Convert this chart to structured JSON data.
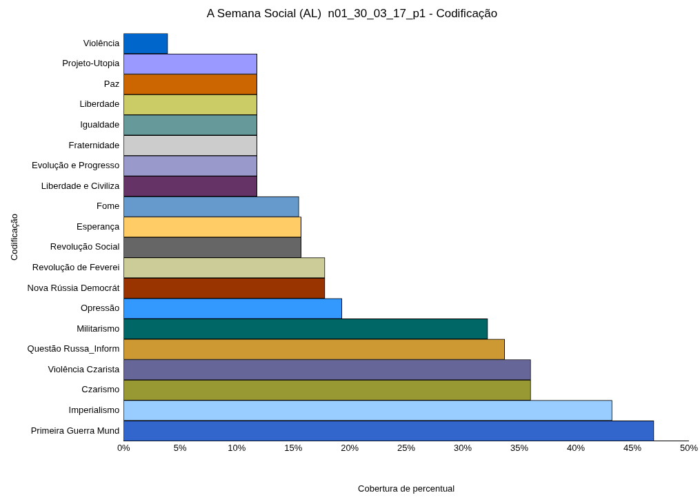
{
  "chart_data": {
    "type": "bar",
    "orientation": "horizontal",
    "title": "A Semana Social (AL)  n01_30_03_17_p1 - Codificação",
    "xlabel": "Cobertura de percentual",
    "ylabel": "Codificação",
    "categories": [
      "Violência",
      "Projeto-Utopia",
      "Paz",
      "Liberdade",
      "Igualdade",
      "Fraternidade",
      "Evolução e Progresso",
      "Liberdade e Civiliza",
      "Fome",
      "Esperança",
      "Revolução Social",
      "Revolução de Feverei",
      "Nova Rússia Democrát",
      "Opressão",
      "Militarismo",
      "Questão Russa_Inform",
      "Violência Czarista",
      "Czarismo",
      "Imperialismo",
      "Primeira Guerra Mund"
    ],
    "values": [
      3.9,
      11.8,
      11.8,
      11.8,
      11.8,
      11.8,
      11.8,
      11.8,
      15.5,
      15.7,
      15.7,
      17.8,
      17.8,
      19.3,
      32.2,
      33.7,
      36.0,
      36.0,
      43.2,
      46.9
    ],
    "colors": [
      "#0066cc",
      "#9999ff",
      "#cc6600",
      "#cccc66",
      "#669999",
      "#cccccc",
      "#9999cc",
      "#663366",
      "#6699cc",
      "#ffcc66",
      "#666666",
      "#cccc99",
      "#993300",
      "#3399ff",
      "#006666",
      "#cc9933",
      "#666699",
      "#999933",
      "#99ccff",
      "#3366cc"
    ],
    "xlim": [
      0,
      50
    ],
    "xticks": [
      {
        "value": 0,
        "label": "0%"
      },
      {
        "value": 5,
        "label": "5%"
      },
      {
        "value": 10,
        "label": "10%"
      },
      {
        "value": 15,
        "label": "15%"
      },
      {
        "value": 20,
        "label": "20%"
      },
      {
        "value": 25,
        "label": "25%"
      },
      {
        "value": 30,
        "label": "30%"
      },
      {
        "value": 35,
        "label": "35%"
      },
      {
        "value": 40,
        "label": "40%"
      },
      {
        "value": 45,
        "label": "45%"
      },
      {
        "value": 50,
        "label": "50%"
      }
    ],
    "grid": false,
    "legend": false
  }
}
